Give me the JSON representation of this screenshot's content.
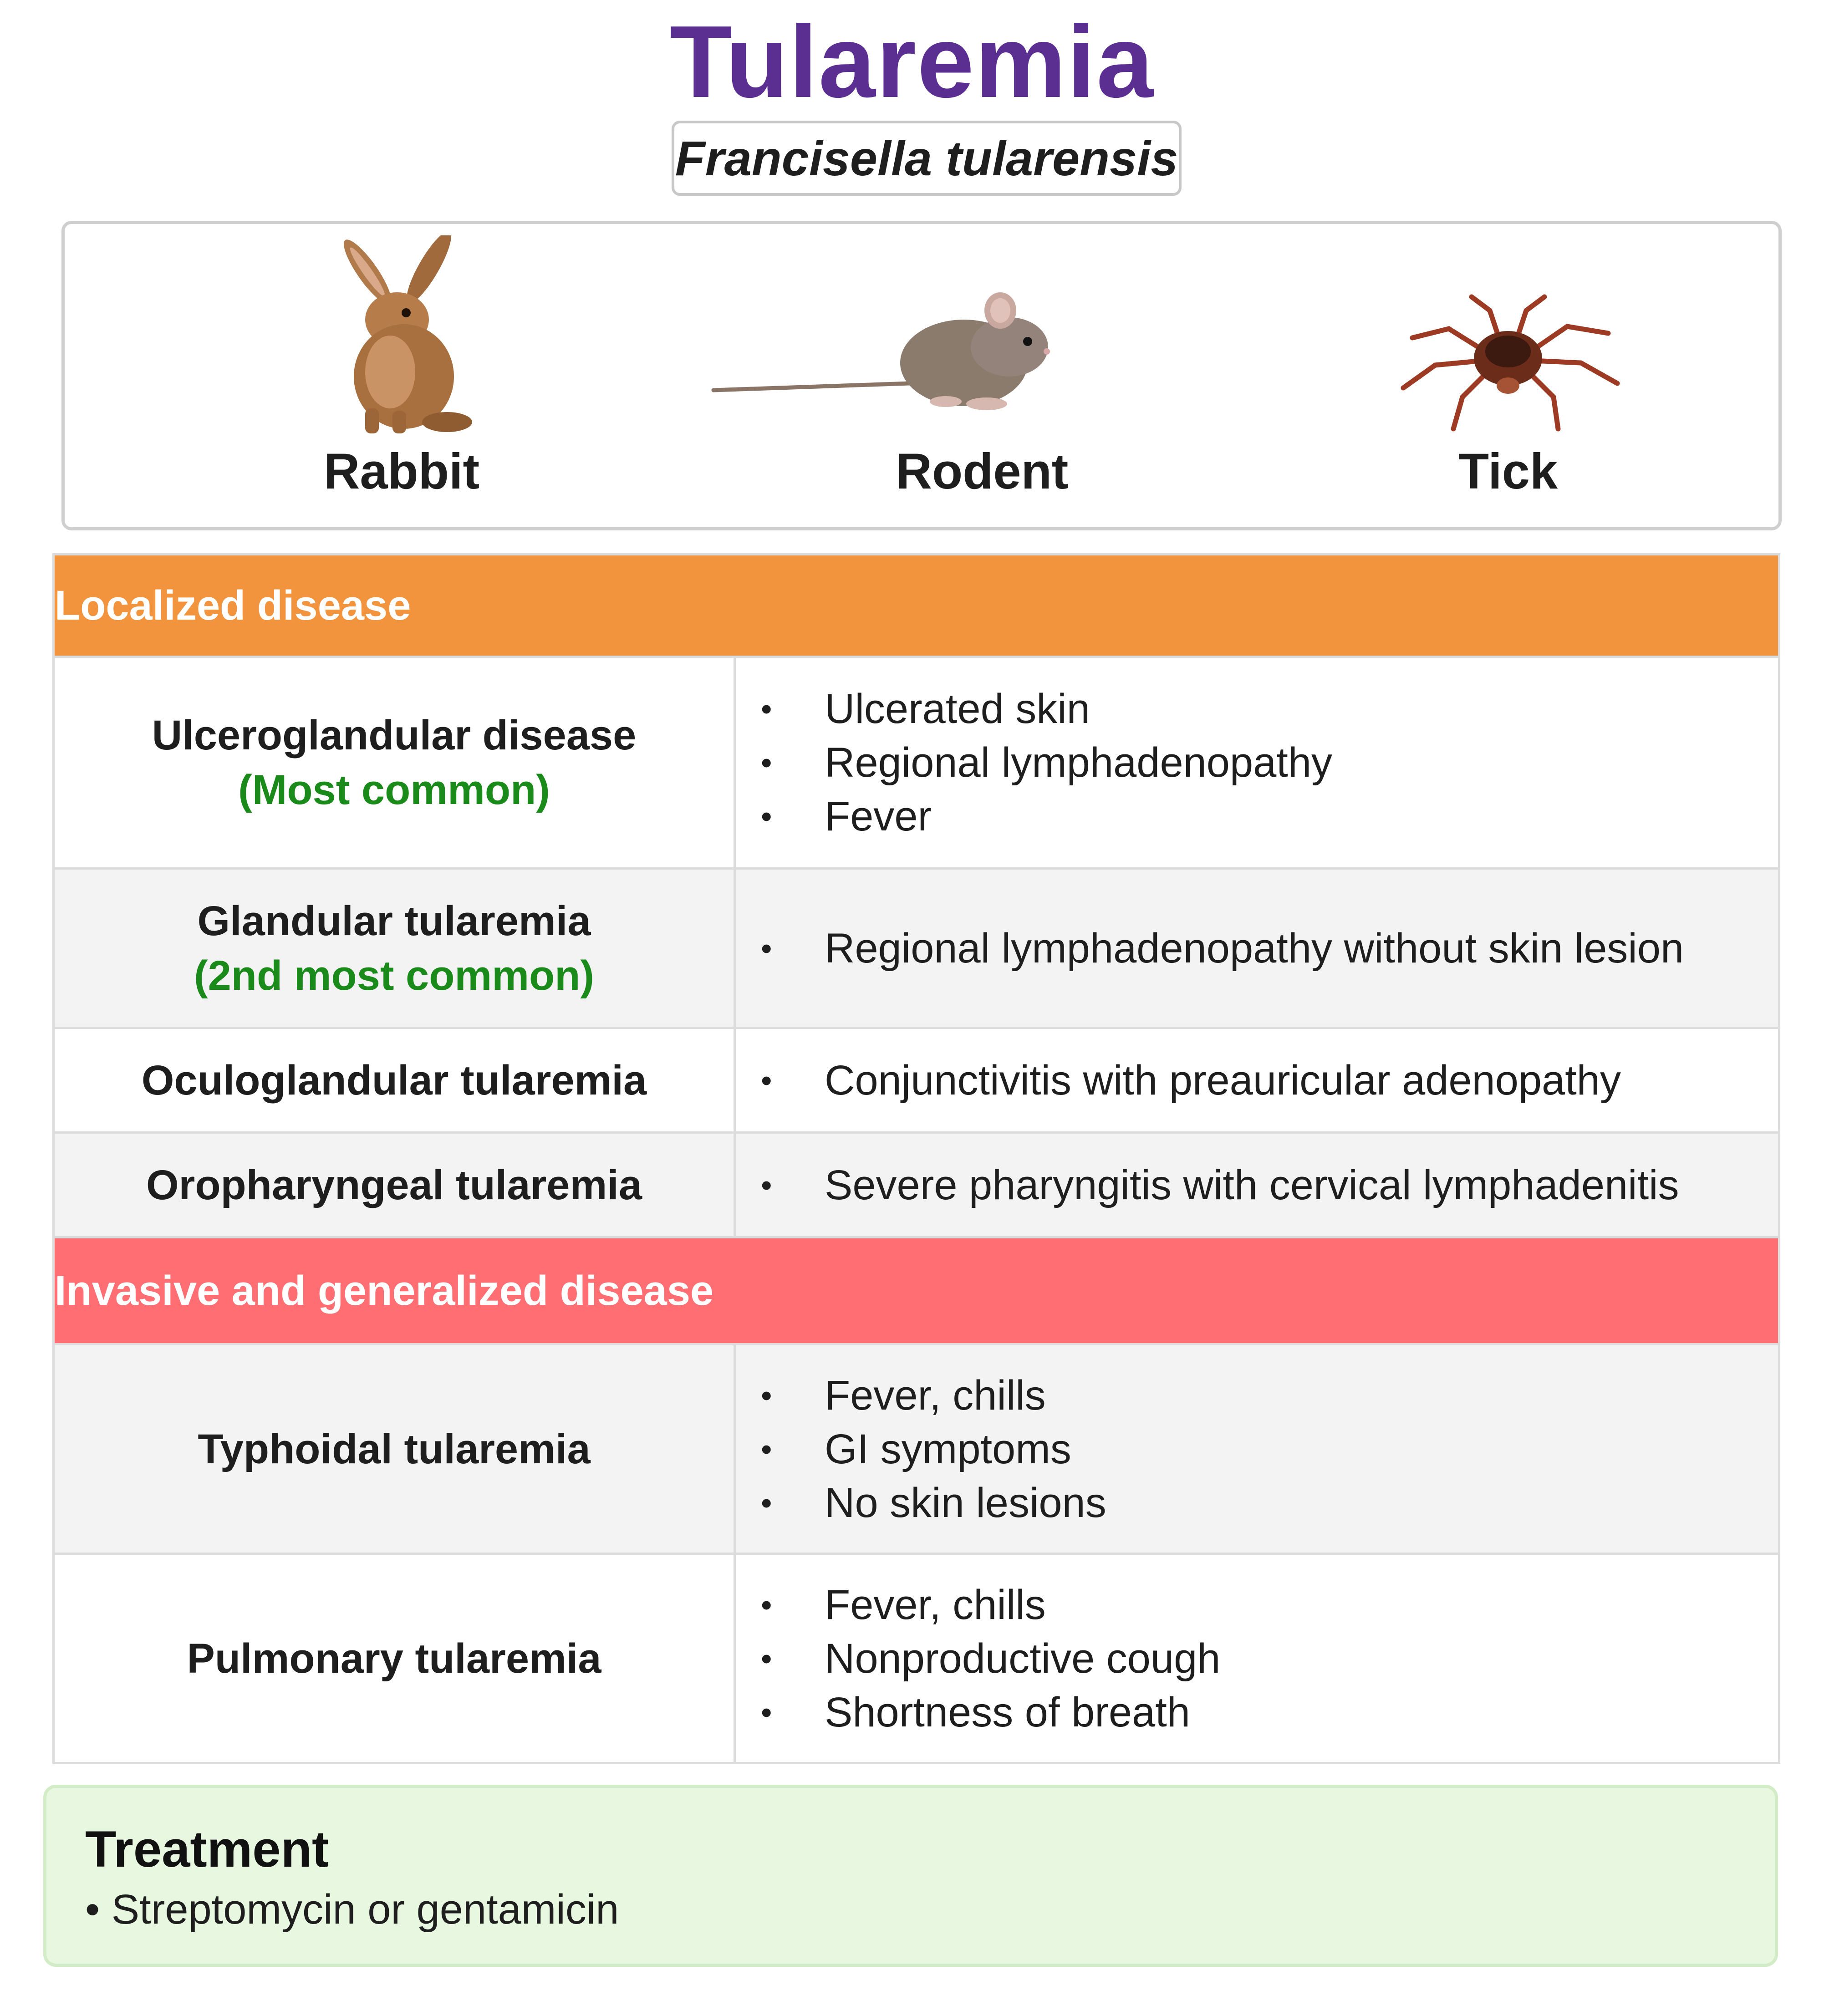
{
  "header": {
    "title": "Tularemia",
    "subtitle": "Francisella tularensis"
  },
  "animals": [
    {
      "label": "Rabbit",
      "icon": "rabbit-image"
    },
    {
      "label": "Rodent",
      "icon": "mouse-image"
    },
    {
      "label": "Tick",
      "icon": "tick-image"
    }
  ],
  "sections": {
    "localized": {
      "label": "Localized disease",
      "color": "#f2933d",
      "rows": [
        {
          "name": "Ulceroglandular disease",
          "note": "(Most common)",
          "items": [
            "Ulcerated skin",
            "Regional lymphadenopathy",
            "Fever"
          ]
        },
        {
          "name": "Glandular tularemia",
          "note": "(2nd most common)",
          "items": [
            "Regional lymphadenopathy without skin lesion"
          ]
        },
        {
          "name": "Oculoglandular tularemia",
          "items": [
            "Conjunctivitis with preauricular adenopathy"
          ]
        },
        {
          "name": "Oropharyngeal tularemia",
          "items": [
            "Severe pharyngitis with cervical lymphadenitis"
          ]
        }
      ]
    },
    "invasive": {
      "label": "Invasive and generalized disease",
      "color": "#ff6e73",
      "rows": [
        {
          "name": "Typhoidal tularemia",
          "items": [
            "Fever, chills",
            "GI symptoms",
            "No skin lesions"
          ]
        },
        {
          "name": "Pulmonary tularemia",
          "items": [
            "Fever, chills",
            "Nonproductive cough",
            "Shortness of breath"
          ]
        }
      ]
    }
  },
  "treatment": {
    "title": "Treatment",
    "item": "Streptomycin or gentamicin"
  }
}
